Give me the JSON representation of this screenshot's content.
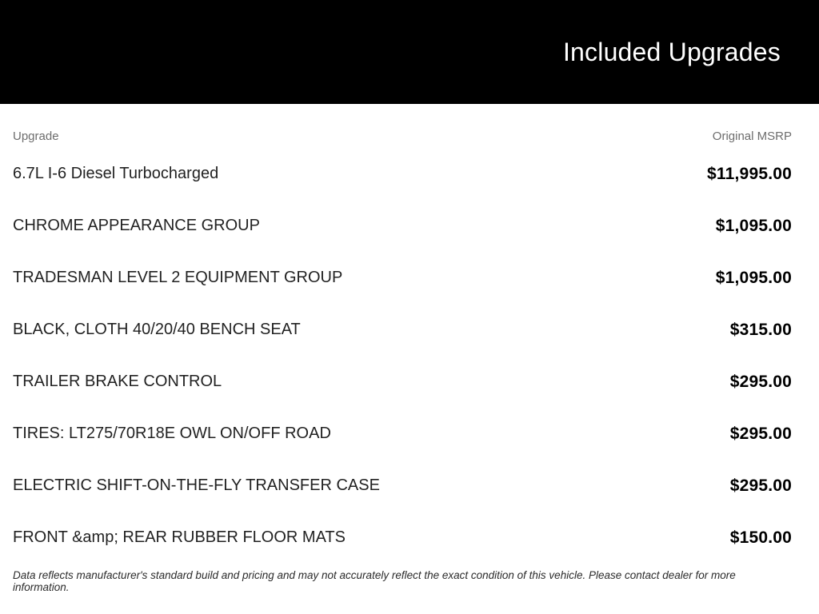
{
  "header": {
    "title": "Included Upgrades"
  },
  "table": {
    "columns": {
      "upgrade": "Upgrade",
      "msrp": "Original MSRP"
    },
    "rows": [
      {
        "upgrade": "6.7L I-6 Diesel Turbocharged",
        "msrp": "$11,995.00"
      },
      {
        "upgrade": "CHROME APPEARANCE GROUP",
        "msrp": "$1,095.00"
      },
      {
        "upgrade": "TRADESMAN LEVEL 2 EQUIPMENT GROUP",
        "msrp": "$1,095.00"
      },
      {
        "upgrade": "BLACK, CLOTH 40/20/40 BENCH SEAT",
        "msrp": "$315.00"
      },
      {
        "upgrade": "TRAILER BRAKE CONTROL",
        "msrp": "$295.00"
      },
      {
        "upgrade": "TIRES: LT275/70R18E OWL ON/OFF ROAD",
        "msrp": "$295.00"
      },
      {
        "upgrade": "ELECTRIC SHIFT-ON-THE-FLY TRANSFER CASE",
        "msrp": "$295.00"
      },
      {
        "upgrade": "FRONT &amp; REAR RUBBER FLOOR MATS",
        "msrp": "$150.00"
      }
    ]
  },
  "footer": {
    "disclaimer": "Data reflects manufacturer's standard build and pricing and may not accurately reflect the exact condition of this vehicle. Please contact dealer for more information."
  },
  "colors": {
    "header_bg": "#000000",
    "title_text": "#ffffff",
    "column_header_text": "#6d6d6d",
    "row_label_text": "#222222",
    "price_text": "#000000"
  }
}
